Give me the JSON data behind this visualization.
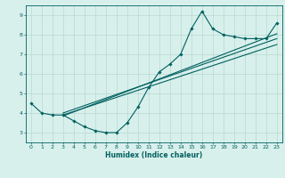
{
  "xlabel": "Humidex (Indice chaleur)",
  "background_color": "#d8f0ec",
  "grid_color": "#b8d8d0",
  "line_color": "#006060",
  "xlim": [
    -0.5,
    23.5
  ],
  "ylim": [
    2.5,
    9.5
  ],
  "xticks": [
    0,
    1,
    2,
    3,
    4,
    5,
    6,
    7,
    8,
    9,
    10,
    11,
    12,
    13,
    14,
    15,
    16,
    17,
    18,
    19,
    20,
    21,
    22,
    23
  ],
  "yticks": [
    3,
    4,
    5,
    6,
    7,
    8,
    9
  ],
  "main_line_x": [
    0,
    1,
    2,
    3,
    4,
    5,
    6,
    7,
    8,
    9,
    10,
    11,
    12,
    13,
    14,
    15,
    16,
    17,
    18,
    19,
    20,
    21,
    22,
    23
  ],
  "main_line_y": [
    4.5,
    4.0,
    3.9,
    3.9,
    3.6,
    3.3,
    3.1,
    3.0,
    3.0,
    3.5,
    4.3,
    5.3,
    6.1,
    6.5,
    7.0,
    8.3,
    9.2,
    8.3,
    8.0,
    7.9,
    7.8,
    7.8,
    7.8,
    8.6
  ],
  "reg_line1_x": [
    3,
    23
  ],
  "reg_line1_y": [
    4.0,
    7.8
  ],
  "reg_line2_x": [
    3,
    23
  ],
  "reg_line2_y": [
    3.85,
    8.05
  ],
  "reg_line3_x": [
    3,
    23
  ],
  "reg_line3_y": [
    3.9,
    7.5
  ]
}
